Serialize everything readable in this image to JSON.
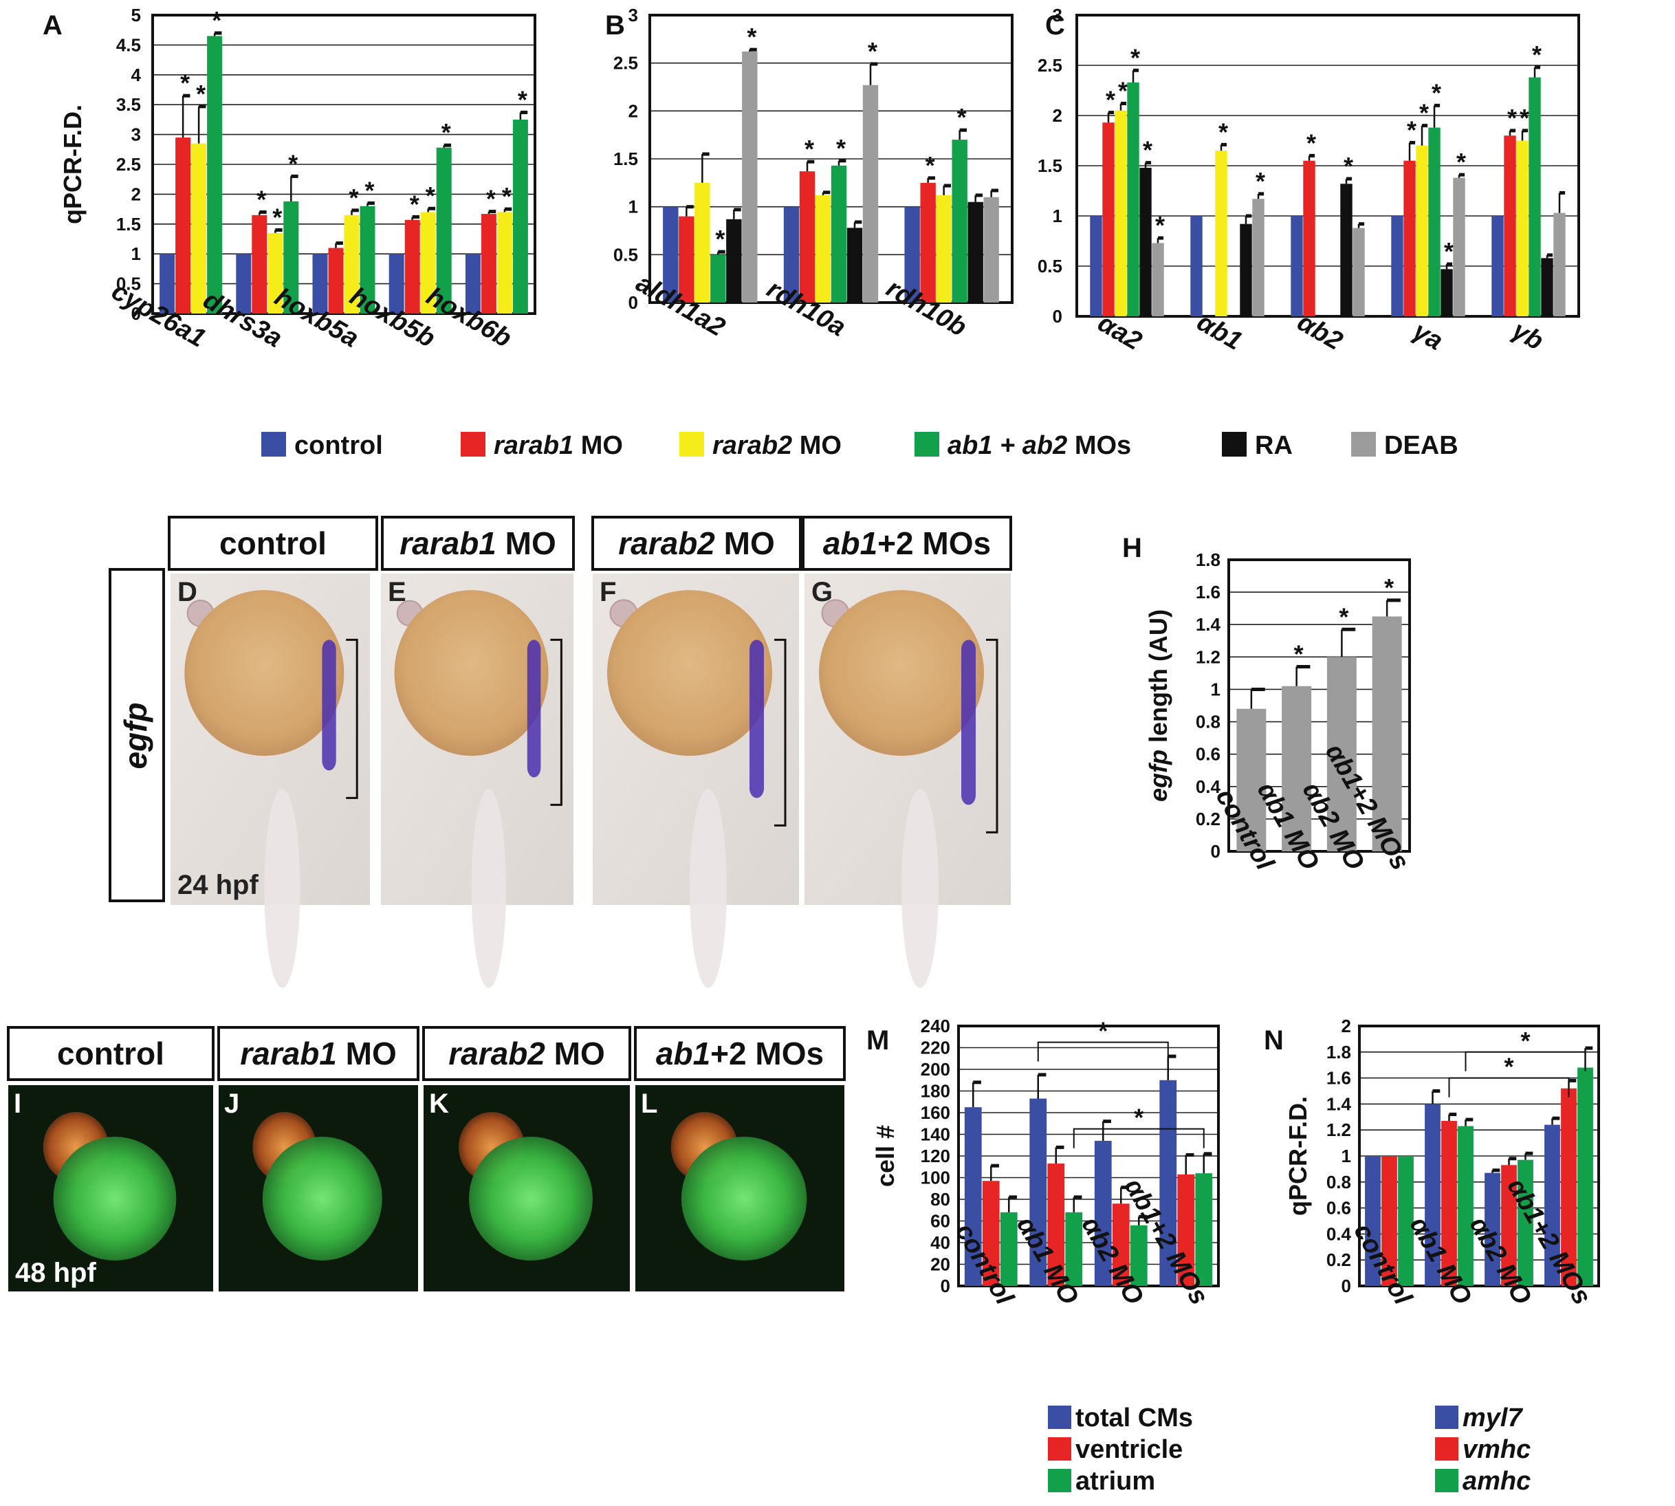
{
  "legend_main": [
    {
      "label": "control",
      "italic": "",
      "suffix": "",
      "color": "#3a4ea3"
    },
    {
      "label": "",
      "italic": "rarab1",
      "suffix": " MO",
      "color": "#e82525"
    },
    {
      "label": "",
      "italic": "rarab2",
      "suffix": " MO",
      "color": "#f5ec1a"
    },
    {
      "label": "",
      "italic": "ab1 + ab2",
      "suffix": " MOs",
      "color": "#12a04b"
    },
    {
      "label": "RA",
      "italic": "",
      "suffix": "",
      "color": "#111111"
    },
    {
      "label": "DEAB",
      "italic": "",
      "suffix": "",
      "color": "#9c9c9c"
    }
  ],
  "panelD": {
    "ylabel_italic": "egfp",
    "headers": [
      {
        "italic": "",
        "text": "control"
      },
      {
        "italic": "rarab1",
        "text": " MO"
      },
      {
        "italic": "rarab2",
        "text": " MO"
      },
      {
        "italic": "ab1",
        "text": "+2 MOs"
      }
    ],
    "letters": [
      "D",
      "E",
      "F",
      "G"
    ],
    "stage": "24 hpf"
  },
  "panelI": {
    "headers": [
      {
        "italic": "",
        "text": "control"
      },
      {
        "italic": "rarab1",
        "text": " MO"
      },
      {
        "italic": "rarab2",
        "text": " MO"
      },
      {
        "italic": "ab1",
        "text": "+2 MOs"
      }
    ],
    "letters": [
      "I",
      "J",
      "K",
      "L"
    ],
    "stage": "48 hpf"
  },
  "chart_data": [
    {
      "id": "A",
      "type": "bar",
      "ylabel": "qPCR-F.D.",
      "ylim": [
        0,
        5
      ],
      "yticks": [
        0,
        0.5,
        1,
        1.5,
        2,
        2.5,
        3,
        3.5,
        4,
        4.5,
        5
      ],
      "categories": [
        "cyp26a1",
        "dhrs3a",
        "hoxb5a",
        "hoxb5b",
        "hoxb6b"
      ],
      "series_colors": [
        "#3a4ea3",
        "#e82525",
        "#f5ec1a",
        "#12a04b"
      ],
      "groups": [
        [
          {
            "v": 1,
            "e": 0,
            "s": false
          },
          {
            "v": 2.95,
            "e": 0.7,
            "s": true
          },
          {
            "v": 2.85,
            "e": 0.62,
            "s": true
          },
          {
            "v": 4.65,
            "e": 0.05,
            "s": true
          }
        ],
        [
          {
            "v": 1,
            "e": 0,
            "s": false
          },
          {
            "v": 1.65,
            "e": 0.05,
            "s": true
          },
          {
            "v": 1.35,
            "e": 0.05,
            "s": true
          },
          {
            "v": 1.88,
            "e": 0.42,
            "s": true
          }
        ],
        [
          {
            "v": 1,
            "e": 0,
            "s": false
          },
          {
            "v": 1.1,
            "e": 0.08,
            "s": false
          },
          {
            "v": 1.65,
            "e": 0.08,
            "s": true
          },
          {
            "v": 1.8,
            "e": 0.05,
            "s": true
          }
        ],
        [
          {
            "v": 1,
            "e": 0,
            "s": false
          },
          {
            "v": 1.57,
            "e": 0.05,
            "s": true
          },
          {
            "v": 1.7,
            "e": 0.06,
            "s": true
          },
          {
            "v": 2.78,
            "e": 0.04,
            "s": true
          }
        ],
        [
          {
            "v": 1,
            "e": 0,
            "s": false
          },
          {
            "v": 1.67,
            "e": 0.04,
            "s": true
          },
          {
            "v": 1.7,
            "e": 0.05,
            "s": true
          },
          {
            "v": 3.25,
            "e": 0.12,
            "s": true
          }
        ]
      ]
    },
    {
      "id": "B",
      "type": "bar",
      "ylabel": "",
      "ylim": [
        0,
        3
      ],
      "yticks": [
        0,
        0.5,
        1,
        1.5,
        2,
        2.5,
        3
      ],
      "categories": [
        "aldh1a2",
        "rdh10a",
        "rdh10b"
      ],
      "series_colors": [
        "#3a4ea3",
        "#e82525",
        "#f5ec1a",
        "#12a04b",
        "#111111",
        "#9c9c9c"
      ],
      "groups": [
        [
          {
            "v": 1,
            "e": 0,
            "s": false
          },
          {
            "v": 0.9,
            "e": 0.1,
            "s": false
          },
          {
            "v": 1.25,
            "e": 0.3,
            "s": false
          },
          {
            "v": 0.5,
            "e": 0.03,
            "s": true
          },
          {
            "v": 0.87,
            "e": 0.1,
            "s": false
          },
          {
            "v": 2.62,
            "e": 0.02,
            "s": true
          }
        ],
        [
          {
            "v": 1,
            "e": 0,
            "s": false
          },
          {
            "v": 1.37,
            "e": 0.1,
            "s": true
          },
          {
            "v": 1.12,
            "e": 0.03,
            "s": false
          },
          {
            "v": 1.43,
            "e": 0.05,
            "s": true
          },
          {
            "v": 0.78,
            "e": 0.06,
            "s": false
          },
          {
            "v": 2.27,
            "e": 0.22,
            "s": true
          }
        ],
        [
          {
            "v": 1,
            "e": 0,
            "s": false
          },
          {
            "v": 1.25,
            "e": 0.05,
            "s": true
          },
          {
            "v": 1.12,
            "e": 0.1,
            "s": false
          },
          {
            "v": 1.7,
            "e": 0.1,
            "s": true
          },
          {
            "v": 1.05,
            "e": 0.07,
            "s": false
          },
          {
            "v": 1.1,
            "e": 0.07,
            "s": false
          }
        ]
      ]
    },
    {
      "id": "C",
      "type": "bar",
      "ylabel": "",
      "ylim": [
        0,
        3
      ],
      "yticks": [
        0,
        0.5,
        1,
        1.5,
        2,
        2.5,
        3
      ],
      "categories": [
        "αa2",
        "αb1",
        "αb2",
        "γa",
        "γb"
      ],
      "series_colors": [
        "#3a4ea3",
        "#e82525",
        "#f5ec1a",
        "#12a04b",
        "#111111",
        "#9c9c9c"
      ],
      "groups": [
        [
          {
            "v": 1,
            "e": 0,
            "s": false
          },
          {
            "v": 1.93,
            "e": 0.1,
            "s": true
          },
          {
            "v": 2.05,
            "e": 0.07,
            "s": true
          },
          {
            "v": 2.33,
            "e": 0.12,
            "s": true
          },
          {
            "v": 1.48,
            "e": 0.05,
            "s": true
          },
          {
            "v": 0.73,
            "e": 0.05,
            "s": true
          }
        ],
        [
          {
            "v": 1,
            "e": 0,
            "s": false
          },
          null,
          {
            "v": 1.65,
            "e": 0.06,
            "s": true
          },
          null,
          {
            "v": 0.92,
            "e": 0.08,
            "s": false
          },
          {
            "v": 1.17,
            "e": 0.05,
            "s": true
          }
        ],
        [
          {
            "v": 1,
            "e": 0,
            "s": false
          },
          {
            "v": 1.55,
            "e": 0.05,
            "s": true
          },
          null,
          null,
          {
            "v": 1.32,
            "e": 0.05,
            "s": true
          },
          {
            "v": 0.88,
            "e": 0.04,
            "s": false
          }
        ],
        [
          {
            "v": 1,
            "e": 0,
            "s": false
          },
          {
            "v": 1.55,
            "e": 0.18,
            "s": true
          },
          {
            "v": 1.7,
            "e": 0.2,
            "s": true
          },
          {
            "v": 1.88,
            "e": 0.22,
            "s": true
          },
          {
            "v": 0.47,
            "e": 0.05,
            "s": true
          },
          {
            "v": 1.38,
            "e": 0.03,
            "s": true
          }
        ],
        [
          {
            "v": 1,
            "e": 0,
            "s": false
          },
          {
            "v": 1.8,
            "e": 0.05,
            "s": true
          },
          {
            "v": 1.75,
            "e": 0.1,
            "s": true
          },
          {
            "v": 2.38,
            "e": 0.1,
            "s": true
          },
          {
            "v": 0.58,
            "e": 0.03,
            "s": false
          },
          {
            "v": 1.03,
            "e": 0.2,
            "s": false
          }
        ]
      ]
    },
    {
      "id": "H",
      "type": "bar",
      "ylabel": "length (AU)",
      "ylabel_italic": "egfp",
      "ylim": [
        0,
        1.8
      ],
      "yticks": [
        0,
        0.2,
        0.4,
        0.6,
        0.8,
        1,
        1.2,
        1.4,
        1.6,
        1.8
      ],
      "categories": [
        "control",
        "αb1 MO",
        "αb2 MO",
        "αb1+2 MOs"
      ],
      "series_colors": [
        "#9c9c9c"
      ],
      "groups": [
        [
          {
            "v": 0.88,
            "e": 0.12,
            "s": false
          }
        ],
        [
          {
            "v": 1.02,
            "e": 0.12,
            "s": true
          }
        ],
        [
          {
            "v": 1.2,
            "e": 0.17,
            "s": true
          }
        ],
        [
          {
            "v": 1.45,
            "e": 0.1,
            "s": true
          }
        ]
      ]
    },
    {
      "id": "M",
      "type": "bar",
      "ylabel": "cell #",
      "ylim": [
        0,
        240
      ],
      "yticks": [
        0,
        20,
        40,
        60,
        80,
        100,
        120,
        140,
        160,
        180,
        200,
        220,
        240
      ],
      "categories": [
        "control",
        "αb1 MO",
        "αb2 MO",
        "αb1+2 MOs"
      ],
      "series": [
        {
          "name": "total CMs",
          "color": "#3a4ea3"
        },
        {
          "name": "ventricle",
          "color": "#e82525"
        },
        {
          "name": "atrium",
          "color": "#12a04b"
        }
      ],
      "series_colors": [
        "#3a4ea3",
        "#e82525",
        "#12a04b"
      ],
      "groups": [
        [
          {
            "v": 165,
            "e": 23,
            "s": false
          },
          {
            "v": 97,
            "e": 14,
            "s": false
          },
          {
            "v": 68,
            "e": 14,
            "s": false
          }
        ],
        [
          {
            "v": 173,
            "e": 22,
            "s": false
          },
          {
            "v": 113,
            "e": 15,
            "s": false
          },
          {
            "v": 68,
            "e": 14,
            "s": false
          }
        ],
        [
          {
            "v": 134,
            "e": 18,
            "s": false
          },
          {
            "v": 76,
            "e": 15,
            "s": false
          },
          {
            "v": 56,
            "e": 8,
            "s": false
          }
        ],
        [
          {
            "v": 190,
            "e": 22,
            "s": false
          },
          {
            "v": 103,
            "e": 18,
            "s": false
          },
          {
            "v": 104,
            "e": 18,
            "s": false
          }
        ]
      ],
      "brackets": [
        {
          "from": [
            1,
            0
          ],
          "to": [
            3,
            0
          ],
          "y": 225,
          "label": "*"
        },
        {
          "from": [
            1,
            2
          ],
          "to": [
            3,
            2
          ],
          "y": 145,
          "label": "*"
        }
      ]
    },
    {
      "id": "N",
      "type": "bar",
      "ylabel": "qPCR-F.D.",
      "ylim": [
        0,
        2
      ],
      "yticks": [
        0,
        0.2,
        0.4,
        0.6,
        0.8,
        1,
        1.2,
        1.4,
        1.6,
        1.8,
        2
      ],
      "categories": [
        "control",
        "αb1 MO",
        "αb2  MO",
        "αb1+2 MOs"
      ],
      "series": [
        {
          "name": "myl7",
          "color": "#3a4ea3"
        },
        {
          "name": "vmhc",
          "color": "#e82525"
        },
        {
          "name": "amhc",
          "color": "#12a04b"
        }
      ],
      "series_colors": [
        "#3a4ea3",
        "#e82525",
        "#12a04b"
      ],
      "groups": [
        [
          {
            "v": 1,
            "e": 0,
            "s": false
          },
          {
            "v": 1,
            "e": 0,
            "s": false
          },
          {
            "v": 1,
            "e": 0,
            "s": false
          }
        ],
        [
          {
            "v": 1.4,
            "e": 0.1,
            "s": false
          },
          {
            "v": 1.27,
            "e": 0.05,
            "s": false
          },
          {
            "v": 1.23,
            "e": 0.05,
            "s": false
          }
        ],
        [
          {
            "v": 0.87,
            "e": 0.02,
            "s": false
          },
          {
            "v": 0.93,
            "e": 0.05,
            "s": false
          },
          {
            "v": 0.97,
            "e": 0.05,
            "s": false
          }
        ],
        [
          {
            "v": 1.24,
            "e": 0.05,
            "s": false
          },
          {
            "v": 1.52,
            "e": 0.06,
            "s": false
          },
          {
            "v": 1.68,
            "e": 0.15,
            "s": false
          }
        ]
      ],
      "brackets": [
        {
          "from": [
            1,
            2
          ],
          "to": [
            3,
            2
          ],
          "y": 1.8,
          "label": "*"
        },
        {
          "from": [
            1,
            1
          ],
          "to": [
            3,
            1
          ],
          "y": 1.6,
          "label": "*"
        }
      ]
    }
  ]
}
